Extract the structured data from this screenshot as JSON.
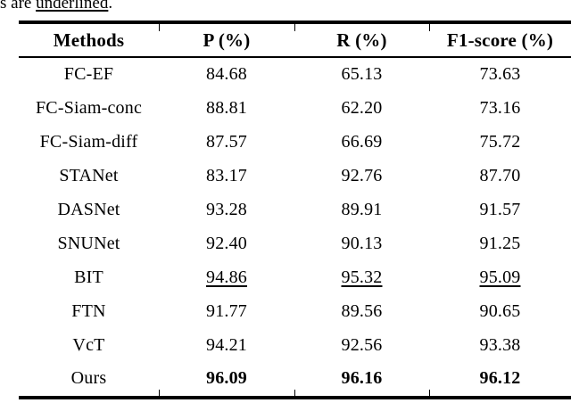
{
  "caption": {
    "prefix": "s are ",
    "underlined_word": "underlined",
    "suffix": "."
  },
  "table": {
    "headers": {
      "methods": "Methods",
      "p": "P (%)",
      "r": "R (%)",
      "f1": "F1-score (%)"
    },
    "rows": [
      {
        "method": "FC-EF",
        "p": "84.68",
        "r": "65.13",
        "f1": "73.63",
        "emphasis": ""
      },
      {
        "method": "FC-Siam-conc",
        "p": "88.81",
        "r": "62.20",
        "f1": "73.16",
        "emphasis": ""
      },
      {
        "method": "FC-Siam-diff",
        "p": "87.57",
        "r": "66.69",
        "f1": "75.72",
        "emphasis": ""
      },
      {
        "method": "STANet",
        "p": "83.17",
        "r": "92.76",
        "f1": "87.70",
        "emphasis": ""
      },
      {
        "method": "DASNet",
        "p": "93.28",
        "r": "89.91",
        "f1": "91.57",
        "emphasis": ""
      },
      {
        "method": "SNUNet",
        "p": "92.40",
        "r": "90.13",
        "f1": "91.25",
        "emphasis": ""
      },
      {
        "method": "BIT",
        "p": "94.86",
        "r": "95.32",
        "f1": "95.09",
        "emphasis": "underline"
      },
      {
        "method": "FTN",
        "p": "91.77",
        "r": "89.56",
        "f1": "90.65",
        "emphasis": ""
      },
      {
        "method": "VcT",
        "p": "94.21",
        "r": "92.56",
        "f1": "93.38",
        "emphasis": ""
      },
      {
        "method": "Ours",
        "p": "96.09",
        "r": "96.16",
        "f1": "96.12",
        "emphasis": "bold"
      }
    ]
  },
  "chart_data": {
    "type": "table",
    "title": "",
    "columns": [
      "Methods",
      "P (%)",
      "R (%)",
      "F1-score (%)"
    ],
    "series": [
      {
        "name": "P (%)",
        "values": [
          84.68,
          88.81,
          87.57,
          83.17,
          93.28,
          92.4,
          94.86,
          91.77,
          94.21,
          96.09
        ]
      },
      {
        "name": "R (%)",
        "values": [
          65.13,
          62.2,
          66.69,
          92.76,
          89.91,
          90.13,
          95.32,
          89.56,
          92.56,
          96.16
        ]
      },
      {
        "name": "F1-score (%)",
        "values": [
          73.63,
          73.16,
          75.72,
          87.7,
          91.57,
          91.25,
          95.09,
          90.65,
          93.38,
          96.12
        ]
      }
    ],
    "categories": [
      "FC-EF",
      "FC-Siam-conc",
      "FC-Siam-diff",
      "STANet",
      "DASNet",
      "SNUNet",
      "BIT",
      "FTN",
      "VcT",
      "Ours"
    ],
    "best_row_bold": "Ours",
    "second_best_row_underlined": "BIT"
  }
}
